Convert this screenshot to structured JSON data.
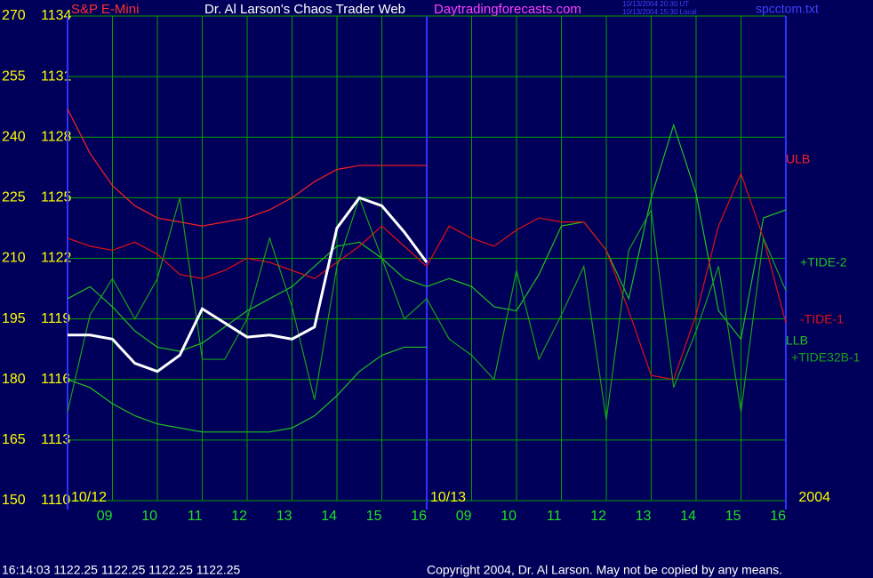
{
  "header": {
    "site": "Dr. Al Larson's Chaos Trader Web",
    "url": "Daytradingforecasts.com",
    "stamp_ut": "10/13/2004 20:30 UT",
    "stamp_local": "10/13/2004 15:30 Local",
    "file": "spcctom.txt"
  },
  "footer": {
    "status": "16:14:03  1122.25 1122.25 1122.25 1122.25",
    "copyright": "Copyright 2004, Dr. Al Larson. May not be copied by any means."
  },
  "chart_data": {
    "type": "line",
    "title": "S&P E-Mini",
    "x": [
      8,
      8.5,
      9,
      9.5,
      10,
      10.5,
      11,
      11.5,
      12,
      12.5,
      13,
      13.5,
      14,
      14.5,
      15,
      15.5,
      16,
      16.5,
      17,
      17.5,
      18,
      18.5,
      19,
      19.5,
      20,
      20.5,
      21,
      21.5,
      22,
      22.5,
      23,
      23.5,
      24
    ],
    "xlim": [
      8,
      24
    ],
    "xticks": [
      {
        "value": 9,
        "label": "09"
      },
      10,
      11,
      12,
      13,
      14,
      15,
      16,
      {
        "value": 17,
        "label": "09"
      },
      {
        "value": 18,
        "label": "10"
      },
      {
        "value": 19,
        "label": "11"
      },
      {
        "value": 20,
        "label": "12"
      },
      {
        "value": 21,
        "label": "13"
      },
      {
        "value": 22,
        "label": "14"
      },
      {
        "value": 23,
        "label": "15"
      },
      {
        "value": 24,
        "label": "16"
      }
    ],
    "day_labels": [
      {
        "value": 8,
        "label": "10/12"
      },
      {
        "value": 16,
        "label": "10/13"
      },
      {
        "value": 24,
        "label": "2004"
      }
    ],
    "ylim": [
      150,
      270
    ],
    "yticks": [
      150,
      165,
      180,
      195,
      210,
      225,
      240,
      255,
      270
    ],
    "y2lim": [
      1110,
      1134
    ],
    "y2ticks": [
      1110,
      1113,
      1116,
      1119,
      1122,
      1125,
      1128,
      1131,
      1134
    ],
    "grid": true,
    "series": [
      {
        "name": "ULB",
        "color": "#ff2020",
        "values": [
          247,
          236,
          228,
          223,
          220,
          219,
          218,
          219,
          220,
          222,
          225,
          229,
          232,
          233,
          233,
          233,
          233,
          null,
          null,
          null,
          null,
          null,
          null,
          null,
          null,
          null,
          null,
          null,
          null,
          null,
          null,
          null,
          null
        ]
      },
      {
        "name": "+TIDE-2",
        "color": "#20c020",
        "values": [
          200,
          203,
          198,
          192,
          188,
          187,
          189,
          193,
          197,
          200,
          203,
          208,
          213,
          214,
          210,
          205,
          203,
          205,
          203,
          198,
          197,
          206,
          218,
          219,
          212,
          200,
          225,
          243,
          226,
          197,
          190,
          220,
          222
        ]
      },
      {
        "name": "-TIDE-1",
        "color": "#e01010",
        "values": [
          215,
          213,
          212,
          214,
          211,
          206,
          205,
          207,
          210,
          209,
          207,
          205,
          209,
          213,
          218,
          213,
          208,
          218,
          215,
          213,
          217,
          220,
          219,
          219,
          212,
          197,
          181,
          180,
          196,
          218,
          231,
          215,
          194
        ]
      },
      {
        "name": "LLB",
        "color": "#20c020",
        "values": [
          180,
          178,
          174,
          171,
          169,
          168,
          167,
          167,
          167,
          167,
          168,
          171,
          176,
          182,
          186,
          188,
          188,
          null,
          null,
          null,
          null,
          null,
          null,
          null,
          null,
          null,
          null,
          null,
          null,
          null,
          null,
          null,
          null
        ]
      },
      {
        "name": "+TIDE32B-1",
        "color": "#18a018",
        "values": [
          172,
          196,
          205,
          195,
          205,
          225,
          185,
          185,
          195,
          215,
          198,
          175,
          208,
          225,
          210,
          195,
          200,
          190,
          186,
          180,
          207,
          185,
          196,
          208,
          170,
          212,
          222,
          178,
          192,
          208,
          172,
          215,
          202
        ]
      },
      {
        "name": "S&P E-Mini",
        "color": "#ffffff",
        "axis": "y2",
        "values": [
          1118.2,
          1118.2,
          1118,
          1116.8,
          1116.4,
          1117.2,
          1119.5,
          1118.8,
          1118.1,
          1118.2,
          1118,
          1118.6,
          1123.5,
          1125,
          1124.6,
          1123.3,
          1121.8,
          null,
          null,
          null,
          null,
          null,
          null,
          null,
          null,
          null,
          null,
          null,
          null,
          null,
          null,
          null,
          null
        ]
      }
    ]
  }
}
